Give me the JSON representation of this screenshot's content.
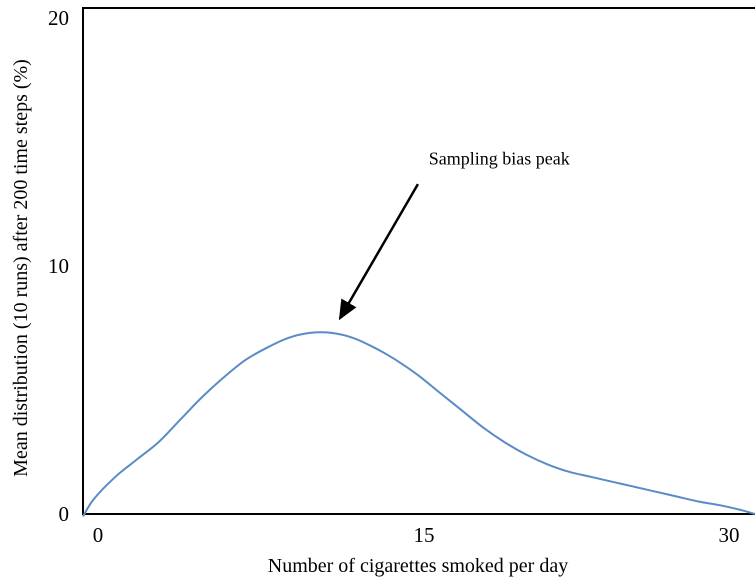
{
  "chart_data": {
    "type": "line",
    "title": "",
    "xlabel": "Number of cigarettes smoked per day",
    "ylabel": "Mean distribution (10 runs) after 200 time steps (%)",
    "xlim": [
      -0.5,
      30.6
    ],
    "ylim": [
      0,
      20.4
    ],
    "x_ticks": [
      0,
      15,
      30
    ],
    "x_tick_labels": [
      "0",
      "15",
      "30"
    ],
    "y_ticks": [
      0,
      10,
      20
    ],
    "y_tick_labels": [
      "0",
      "10",
      "20"
    ],
    "grid": false,
    "legend": "none",
    "series": [
      {
        "color": "#5b8bc6",
        "x": [
          -0.5,
          0,
          1,
          2,
          3,
          4,
          5,
          6,
          7,
          8,
          9,
          10,
          11,
          12,
          13,
          14,
          15,
          16,
          17,
          18,
          19,
          20,
          21,
          22,
          23,
          24,
          25,
          26,
          27,
          28,
          29,
          30,
          30.6
        ],
        "y": [
          -0.1,
          0.6,
          1.5,
          2.2,
          2.9,
          3.8,
          4.7,
          5.5,
          6.2,
          6.7,
          7.1,
          7.3,
          7.3,
          7.1,
          6.7,
          6.2,
          5.6,
          4.9,
          4.2,
          3.5,
          2.9,
          2.4,
          2.0,
          1.7,
          1.5,
          1.3,
          1.1,
          0.9,
          0.7,
          0.5,
          0.35,
          0.15,
          0.0
        ]
      }
    ],
    "annotations": [
      {
        "text": "Sampling bias peak",
        "x": 15.5,
        "y": 14.1,
        "arrow_from": [
          15.0,
          13.3
        ],
        "arrow_to": [
          11.4,
          7.9
        ]
      }
    ]
  }
}
